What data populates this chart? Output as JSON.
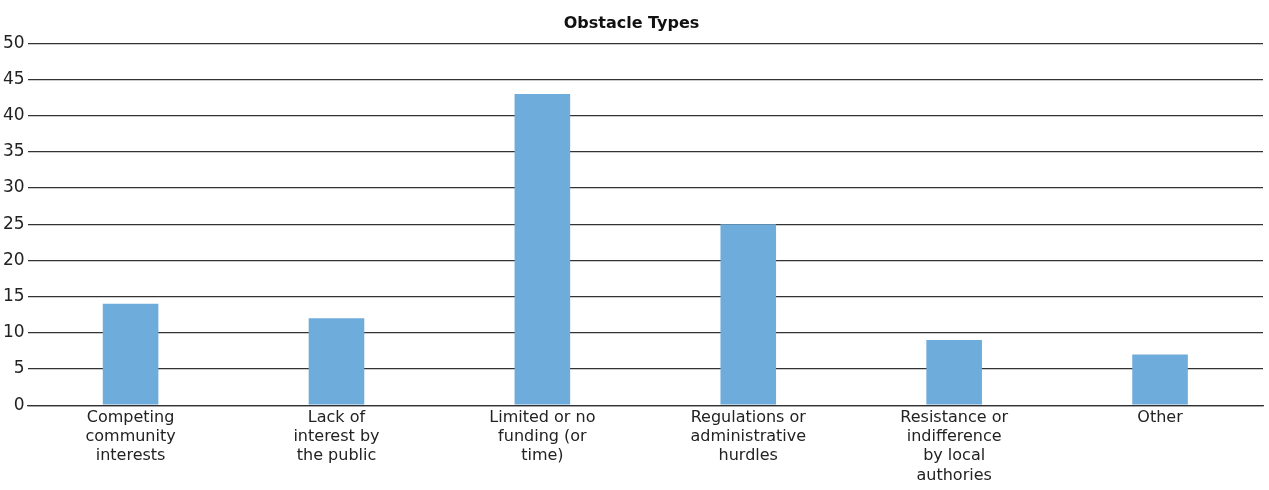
{
  "chart_data": {
    "type": "bar",
    "title": "Obstacle Types",
    "categories": [
      "Competing community interests",
      "Lack of interest by the public",
      "Limited or no funding (or time)",
      "Regulations or administrative hurdles",
      "Resistance or indifference by local authories",
      "Other"
    ],
    "values": [
      14,
      12,
      43,
      25,
      9,
      7
    ],
    "color": "#6eacdc",
    "ylim": [
      0,
      50
    ],
    "yticks": [
      0,
      5,
      10,
      15,
      20,
      25,
      30,
      35,
      40,
      45,
      50
    ],
    "grid": "y",
    "legend": false
  }
}
